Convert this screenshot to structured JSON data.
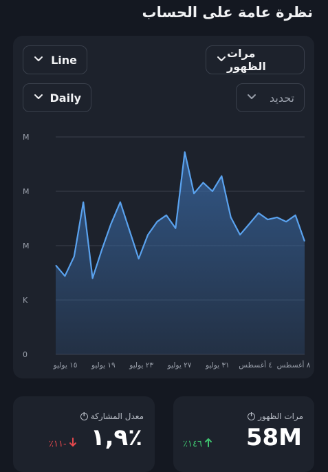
{
  "page_title": "نظرة عامة على الحساب",
  "controls": {
    "metric_select": "مرات الظهور",
    "chart_type_select": "Line",
    "update_select": "تحديد",
    "interval_select": "Daily"
  },
  "chart_data": {
    "type": "area",
    "y_tick_labels": [
      "M",
      "M",
      "M",
      "K",
      "0"
    ],
    "x_tick_labels": [
      "١٥ يوليو",
      "١٩ يوليو",
      "٢٣ يوليو",
      "٢٧ يوليو",
      "٣١ يوليو",
      "٤ أغسطس",
      "٨ أغسطس"
    ],
    "values": [
      0.41,
      0.36,
      0.45,
      0.7,
      0.35,
      0.48,
      0.6,
      0.7,
      0.57,
      0.44,
      0.55,
      0.61,
      0.64,
      0.58,
      0.93,
      0.74,
      0.79,
      0.75,
      0.82,
      0.63,
      0.55,
      0.6,
      0.65,
      0.62,
      0.63,
      0.61,
      0.64,
      0.52
    ],
    "colors": {
      "line": "#5aa2ee",
      "fill_top": "#3a6aa6",
      "fill_bottom": "#1d222c",
      "grid": "#3a404c"
    }
  },
  "cards": {
    "impressions": {
      "label": "مرات الظهور",
      "value": "58M",
      "delta": "٪١٤٦",
      "delta_color": "#3fc26f"
    },
    "engagement": {
      "label": "معدل المشاركة",
      "value": "٪١,٩",
      "delta": "٪١١-",
      "delta_color": "#e5484d"
    }
  }
}
